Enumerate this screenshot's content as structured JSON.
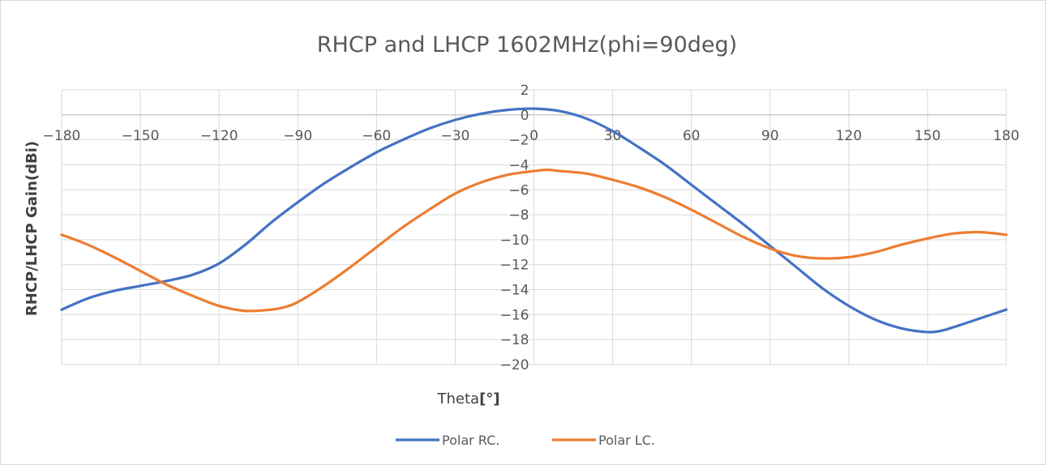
{
  "chart_data": {
    "type": "line",
    "title": "RHCP and LHCP 1602MHz(phi=90deg)",
    "xlabel": "Theta",
    "xlabel_unit": "[°]",
    "ylabel": "RHCP/LHCP Gain(dBi)",
    "xlim": [
      -180,
      180
    ],
    "ylim": [
      -20,
      2
    ],
    "x_ticks": [
      -180,
      -150,
      -120,
      -90,
      -60,
      -30,
      0,
      30,
      60,
      90,
      120,
      150,
      180
    ],
    "y_ticks": [
      2,
      0,
      -2,
      -4,
      -6,
      -8,
      -10,
      -12,
      -14,
      -16,
      -18,
      -20
    ],
    "grid": true,
    "legend_position": "bottom",
    "series": [
      {
        "name": "Polar RC.",
        "color": "#4472c4",
        "x": [
          -180,
          -170,
          -160,
          -150,
          -140,
          -130,
          -120,
          -110,
          -100,
          -90,
          -80,
          -70,
          -60,
          -50,
          -40,
          -30,
          -20,
          -10,
          0,
          10,
          20,
          30,
          40,
          50,
          60,
          70,
          80,
          90,
          100,
          110,
          120,
          130,
          140,
          150,
          155,
          160,
          170,
          180
        ],
        "y": [
          -15.6,
          -14.7,
          -14.1,
          -13.7,
          -13.3,
          -12.8,
          -11.9,
          -10.4,
          -8.6,
          -7.0,
          -5.5,
          -4.2,
          -3.0,
          -2.0,
          -1.1,
          -0.4,
          0.1,
          0.4,
          0.5,
          0.3,
          -0.3,
          -1.3,
          -2.6,
          -4.0,
          -5.6,
          -7.2,
          -8.8,
          -10.5,
          -12.2,
          -13.9,
          -15.3,
          -16.4,
          -17.1,
          -17.4,
          -17.3,
          -17.0,
          -16.3,
          -15.6
        ]
      },
      {
        "name": "Polar LC.",
        "color": "#ed7d31",
        "x": [
          -180,
          -170,
          -160,
          -150,
          -140,
          -130,
          -120,
          -110,
          -100,
          -95,
          -90,
          -80,
          -70,
          -60,
          -50,
          -40,
          -30,
          -20,
          -10,
          0,
          5,
          10,
          20,
          30,
          40,
          50,
          60,
          70,
          80,
          90,
          100,
          110,
          120,
          130,
          140,
          150,
          160,
          170,
          180
        ],
        "y": [
          -9.6,
          -10.4,
          -11.4,
          -12.5,
          -13.6,
          -14.5,
          -15.3,
          -15.7,
          -15.6,
          -15.4,
          -15.0,
          -13.7,
          -12.2,
          -10.6,
          -9.0,
          -7.6,
          -6.3,
          -5.4,
          -4.8,
          -4.5,
          -4.4,
          -4.5,
          -4.7,
          -5.2,
          -5.8,
          -6.6,
          -7.6,
          -8.7,
          -9.8,
          -10.7,
          -11.3,
          -11.5,
          -11.4,
          -11.0,
          -10.4,
          -9.9,
          -9.5,
          -9.4,
          -9.6
        ]
      }
    ]
  }
}
